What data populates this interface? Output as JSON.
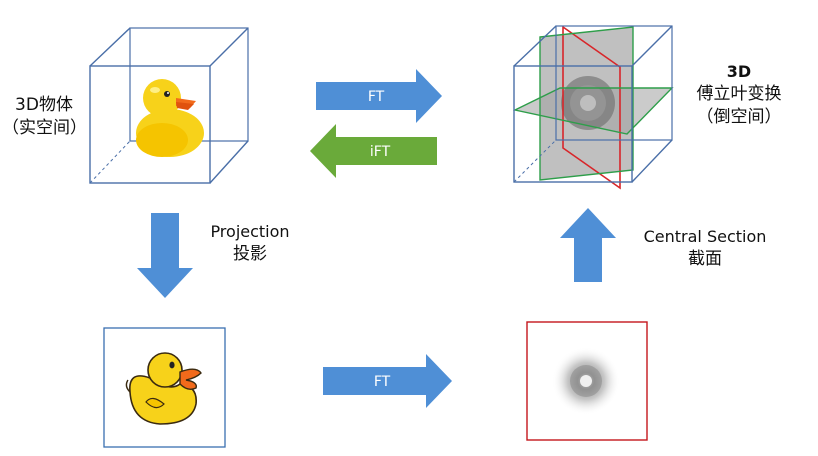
{
  "labels": {
    "object_line1": "3D物体",
    "object_line2": "（实空间）",
    "ft3d_line1": "3D",
    "ft3d_line2": "傅立叶变换",
    "ft3d_line3": "（倒空间）",
    "projection_en": "Projection",
    "projection_cn": "投影",
    "central_en": "Central Section",
    "central_cn": "截面"
  },
  "arrows": {
    "ft_top": "FT",
    "ift": "iFT",
    "ft_bottom": "FT"
  },
  "colors": {
    "arrow_blue": "#4f8fd6",
    "arrow_green": "#6aaa3a",
    "cube_edge": "#4a6fa8",
    "plane_red": "#d8262a",
    "plane_green": "#2e9e4a",
    "box_red": "#c4161c",
    "box_blue": "#3a6fb0",
    "duck_yellow": "#f7d21a",
    "duck_beak": "#f26a1b"
  }
}
